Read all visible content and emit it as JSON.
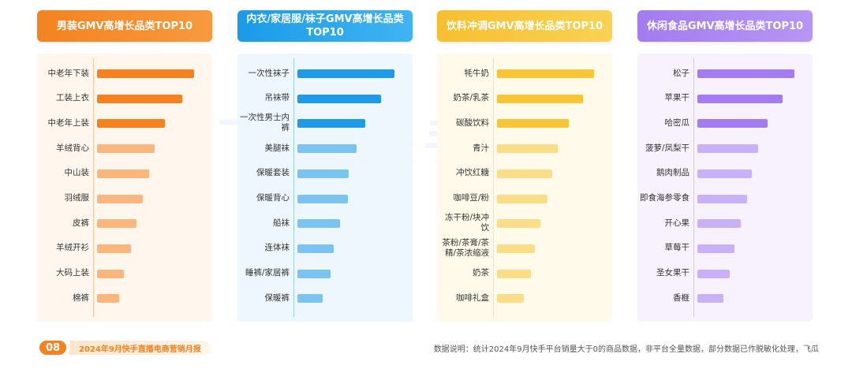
{
  "chart_data": [
    {
      "type": "bar",
      "title": "男装GMV高增长品类TOP10",
      "color": "#f5821f",
      "categories": [
        "中老年下装",
        "工装上衣",
        "中老年上装",
        "羊绒背心",
        "中山装",
        "羽绒服",
        "皮裤",
        "羊绒开衫",
        "大码上装",
        "棉裤"
      ],
      "values": [
        100,
        88,
        70,
        59,
        54,
        47,
        41,
        35,
        28,
        23
      ]
    },
    {
      "type": "bar",
      "title": "内衣/家居服/袜子GMV高增长品类TOP10",
      "color": "#1e9be8",
      "categories": [
        "一次性袜子",
        "吊袜带",
        "一次性男士内裤",
        "美腿袜",
        "保暖套装",
        "保暖背心",
        "船袜",
        "连体袜",
        "睡裤/家居裤",
        "保暖裤"
      ],
      "values": [
        100,
        86,
        70,
        61,
        53,
        52,
        44,
        37,
        34,
        26
      ]
    },
    {
      "type": "bar",
      "title": "饮料冲调GMV高增长品类TOP10",
      "color": "#f8c537",
      "categories": [
        "牦牛奶",
        "奶茶/乳茶",
        "碳酸饮料",
        "青汁",
        "冲饮红糖",
        "咖啡豆/粉",
        "冻干粉/块冲饮",
        "茶粉/茶膏/茶精/茶浓缩液",
        "奶茶",
        "咖啡礼盒"
      ],
      "values": [
        100,
        89,
        74,
        63,
        57,
        52,
        45,
        39,
        35,
        28
      ]
    },
    {
      "type": "bar",
      "title": "休闲食品GMV高增长品类TOP10",
      "color": "#a27cf0",
      "categories": [
        "松子",
        "苹果干",
        "哈密瓜",
        "菠萝/凤梨干",
        "鹅肉制品",
        "即食海参零食",
        "开心果",
        "草莓干",
        "圣女果干",
        "香榧"
      ],
      "values": [
        100,
        88,
        72,
        63,
        56,
        51,
        45,
        38,
        33,
        27
      ]
    }
  ],
  "footer": {
    "page_number": "08",
    "report_title": "2024年9月快手直播电商营销月报",
    "note": "数据说明：统计2024年9月快手平台销量大于0的商品数据，非平台全量数据，部分数据已作脱敏化处理，飞瓜"
  }
}
